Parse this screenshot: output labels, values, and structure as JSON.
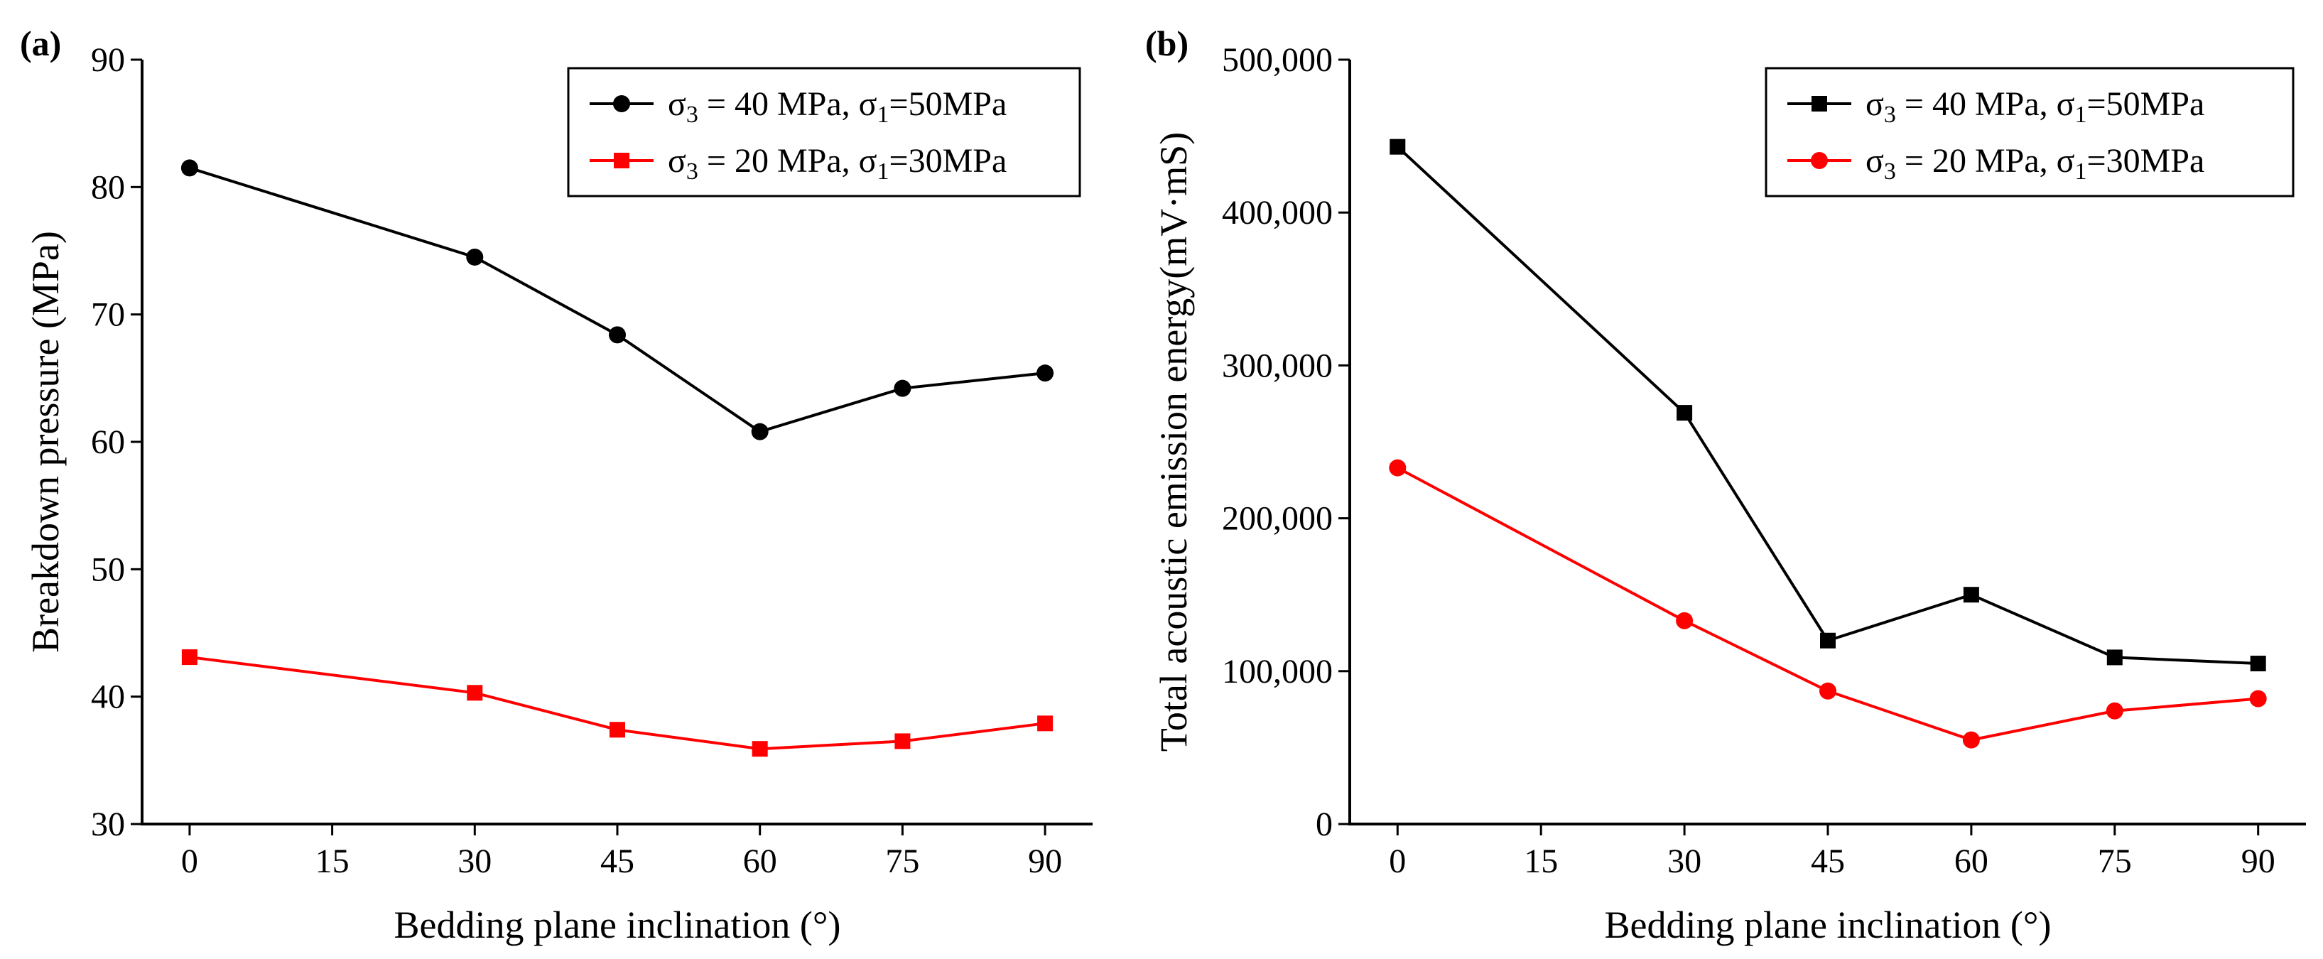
{
  "chart_data": [
    {
      "type": "line",
      "panel_label": "(a)",
      "xlabel": "Bedding plane inclination (°)",
      "ylabel": "Breakdown pressure (MPa)",
      "xlim": [
        -5,
        95
      ],
      "ylim": [
        30,
        90
      ],
      "xticks": [
        0,
        15,
        30,
        45,
        60,
        75,
        90
      ],
      "yticks": [
        30,
        40,
        50,
        60,
        70,
        80,
        90
      ],
      "ytick_labels": [
        "30",
        "40",
        "50",
        "60",
        "70",
        "80",
        "90"
      ],
      "x": [
        0,
        30,
        45,
        60,
        75,
        90
      ],
      "legend_position": "top-right",
      "series": [
        {
          "name": "σ3 = 40 MPa, σ1=50MPa",
          "label_parts": [
            "σ",
            "3",
            " = 40 MPa, σ",
            "1",
            "=50MPa"
          ],
          "color": "#000000",
          "marker": "circle",
          "values": [
            81.5,
            74.5,
            68.4,
            60.8,
            64.2,
            65.4
          ]
        },
        {
          "name": "σ3 = 20 MPa, σ1=30MPa",
          "label_parts": [
            "σ",
            "3",
            " = 20 MPa, σ",
            "1",
            "=30MPa"
          ],
          "color": "#ff0000",
          "marker": "square",
          "values": [
            43.1,
            40.3,
            37.4,
            35.9,
            36.5,
            37.9
          ]
        }
      ]
    },
    {
      "type": "line",
      "panel_label": "(b)",
      "xlabel": "Bedding plane inclination (°)",
      "ylabel": "Total acoustic emission energy(mV·mS)",
      "xlim": [
        -5,
        95
      ],
      "ylim": [
        0,
        500000
      ],
      "xticks": [
        0,
        15,
        30,
        45,
        60,
        75,
        90
      ],
      "yticks": [
        0,
        100000,
        200000,
        300000,
        400000,
        500000
      ],
      "ytick_labels": [
        "0",
        "100,000",
        "200,000",
        "300,000",
        "400,000",
        "500,000"
      ],
      "x": [
        0,
        30,
        45,
        60,
        75,
        90
      ],
      "legend_position": "top-right",
      "series": [
        {
          "name": "σ3 = 40 MPa, σ1=50MPa",
          "label_parts": [
            "σ",
            "3",
            " = 40 MPa, σ",
            "1",
            "=50MPa"
          ],
          "color": "#000000",
          "marker": "square",
          "values": [
            443000,
            269000,
            120000,
            150000,
            109000,
            105000
          ]
        },
        {
          "name": "σ3 = 20 MPa, σ1=30MPa",
          "label_parts": [
            "σ",
            "3",
            " = 20 MPa, σ",
            "1",
            "=30MPa"
          ],
          "color": "#ff0000",
          "marker": "circle",
          "values": [
            233000,
            133000,
            87000,
            55000,
            74000,
            82000
          ]
        }
      ]
    }
  ]
}
